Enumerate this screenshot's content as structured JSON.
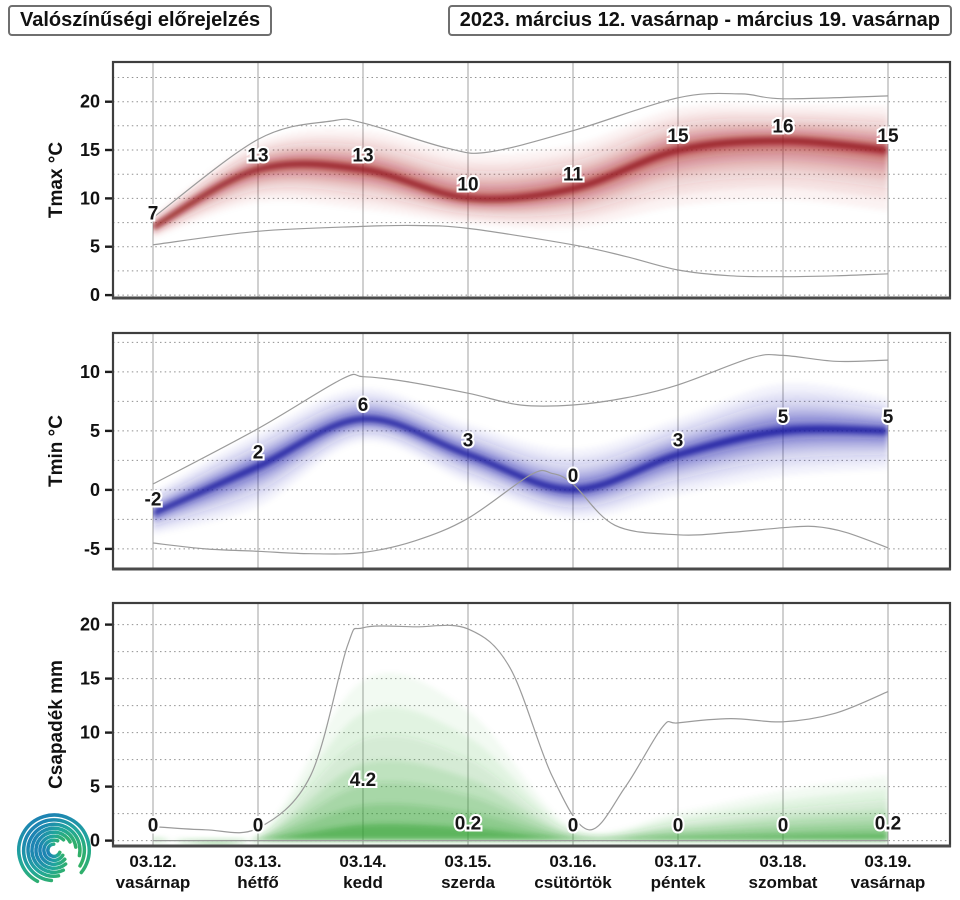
{
  "header": {
    "title": "Valószínűségi előrejelzés",
    "date_range": "2023. március 12. vasárnap - március 19. vasárnap"
  },
  "xaxis": {
    "days": [
      {
        "date": "03.12.",
        "weekday": "vasárnap"
      },
      {
        "date": "03.13.",
        "weekday": "hétfő"
      },
      {
        "date": "03.14.",
        "weekday": "kedd"
      },
      {
        "date": "03.15.",
        "weekday": "szerda"
      },
      {
        "date": "03.16.",
        "weekday": "csütörtök"
      },
      {
        "date": "03.17.",
        "weekday": "péntek"
      },
      {
        "date": "03.18.",
        "weekday": "szombat"
      },
      {
        "date": "03.19.",
        "weekday": "vasárnap"
      }
    ]
  },
  "logo": {
    "name": "meteorology-spiral-logo",
    "gradient": [
      "#3ab54a",
      "#21a79b",
      "#1b75bc"
    ]
  },
  "chart_data": [
    {
      "type": "area",
      "id": "tmax",
      "title": "",
      "ylabel": "Tmax °C",
      "categories": [
        "03.12. vasárnap",
        "03.13. hétfő",
        "03.14. kedd",
        "03.15. szerda",
        "03.16. csütörtök",
        "03.17. péntek",
        "03.18. szombat",
        "03.19. vasárnap"
      ],
      "median": [
        7,
        13,
        13,
        10,
        11,
        15,
        16,
        15
      ],
      "point_labels": [
        "7",
        "13",
        "13",
        "10",
        "11",
        "15",
        "16",
        "15"
      ],
      "fan_hi": [
        8.2,
        15.8,
        17.0,
        14.6,
        15.5,
        19.3,
        19.6,
        19.5
      ],
      "fan_lo": [
        5.9,
        9.6,
        8.9,
        7.4,
        7.0,
        9.2,
        9.9,
        8.7
      ],
      "env_max": [
        [
          0,
          8.0
        ],
        [
          1,
          16.1
        ],
        [
          1.7,
          18.0
        ],
        [
          2,
          17.8
        ],
        [
          2.8,
          15.2
        ],
        [
          3.2,
          14.8
        ],
        [
          4,
          17.0
        ],
        [
          5,
          20.4
        ],
        [
          5.6,
          20.8
        ],
        [
          6,
          20.3
        ],
        [
          7,
          20.6
        ]
      ],
      "env_min": [
        [
          0,
          5.2
        ],
        [
          1,
          6.6
        ],
        [
          2,
          7.1
        ],
        [
          2.5,
          7.2
        ],
        [
          3,
          6.9
        ],
        [
          4,
          5.2
        ],
        [
          4.5,
          4.0
        ],
        [
          5,
          2.6
        ],
        [
          5.5,
          2.0
        ],
        [
          6,
          1.9
        ],
        [
          6.5,
          2.0
        ],
        [
          7,
          2.2
        ]
      ],
      "ylim": [
        -0.3,
        24.1
      ],
      "yticks": [
        0,
        5,
        10,
        15,
        20
      ],
      "minor_step": 2.5,
      "grid": true,
      "legend": "none",
      "color": "#aa1e24",
      "core_color": "#8e151a"
    },
    {
      "type": "area",
      "id": "tmin",
      "title": "",
      "ylabel": "Tmin °C",
      "categories": [
        "03.12. vasárnap",
        "03.13. hétfő",
        "03.14. kedd",
        "03.15. szerda",
        "03.16. csütörtök",
        "03.17. péntek",
        "03.18. szombat",
        "03.19. vasárnap"
      ],
      "median": [
        -2,
        2,
        6,
        3,
        0,
        3,
        5,
        5
      ],
      "point_labels": [
        "-2",
        "2",
        "6",
        "3",
        "0",
        "3",
        "5",
        "5"
      ],
      "fan_hi": [
        -0.2,
        4.8,
        8.6,
        5.6,
        3.4,
        6.0,
        9.0,
        7.8
      ],
      "fan_lo": [
        -3.8,
        -1.4,
        4.1,
        0.6,
        -2.4,
        -0.4,
        1.2,
        1.8
      ],
      "env_max": [
        [
          0,
          0.5
        ],
        [
          1,
          5.2
        ],
        [
          1.8,
          9.4
        ],
        [
          2,
          9.6
        ],
        [
          2.4,
          9.2
        ],
        [
          3,
          8.2
        ],
        [
          3.5,
          7.2
        ],
        [
          4,
          7.2
        ],
        [
          4.5,
          7.8
        ],
        [
          5,
          8.9
        ],
        [
          5.7,
          11.2
        ],
        [
          6,
          11.4
        ],
        [
          6.5,
          10.9
        ],
        [
          7,
          11.0
        ]
      ],
      "env_min": [
        [
          0,
          -4.5
        ],
        [
          0.5,
          -5.0
        ],
        [
          1,
          -5.2
        ],
        [
          1.5,
          -5.4
        ],
        [
          2,
          -5.3
        ],
        [
          2.5,
          -4.3
        ],
        [
          3,
          -2.4
        ],
        [
          3.6,
          1.3
        ],
        [
          3.8,
          1.4
        ],
        [
          4,
          0.5
        ],
        [
          4.4,
          -3.0
        ],
        [
          5,
          -3.8
        ],
        [
          5.5,
          -3.6
        ],
        [
          6,
          -3.2
        ],
        [
          6.3,
          -3.1
        ],
        [
          6.6,
          -3.6
        ],
        [
          7,
          -4.9
        ]
      ],
      "ylim": [
        -6.7,
        13.3
      ],
      "yticks": [
        -5,
        0,
        5,
        10
      ],
      "minor_step": 2.5,
      "grid": true,
      "legend": "none",
      "color": "#2323af",
      "core_color": "#18189a"
    },
    {
      "type": "area",
      "id": "csapadek",
      "title": "",
      "ylabel": "Csapadék mm",
      "categories": [
        "03.12. vasárnap",
        "03.13. hétfő",
        "03.14. kedd",
        "03.15. szerda",
        "03.16. csütörtök",
        "03.17. péntek",
        "03.18. szombat",
        "03.19. vasárnap"
      ],
      "median": [
        0,
        0,
        4.2,
        0.2,
        0,
        0,
        0,
        0.2
      ],
      "point_labels": [
        "0",
        "0",
        "4.2",
        "0.2",
        "0",
        "0",
        "0",
        "0.2"
      ],
      "fan_hi": [
        0.3,
        0.5,
        14.8,
        12.0,
        1.2,
        2.6,
        4.6,
        6.0
      ],
      "fan_lo": [
        0,
        0,
        0,
        0,
        0,
        0,
        0,
        0
      ],
      "env_max": [
        [
          0,
          1.3
        ],
        [
          0.5,
          1.0
        ],
        [
          1,
          1.15
        ],
        [
          1.5,
          6.0
        ],
        [
          1.85,
          18.0
        ],
        [
          2,
          19.7
        ],
        [
          2.5,
          19.8
        ],
        [
          3,
          19.6
        ],
        [
          3.4,
          16.0
        ],
        [
          3.8,
          6.0
        ],
        [
          4.15,
          1.0
        ],
        [
          4.5,
          5.0
        ],
        [
          4.85,
          10.5
        ],
        [
          5,
          10.9
        ],
        [
          5.5,
          11.3
        ],
        [
          6,
          11.0
        ],
        [
          6.5,
          11.8
        ],
        [
          7,
          13.8
        ]
      ],
      "env_min": [
        [
          0,
          0
        ],
        [
          1,
          0
        ],
        [
          2,
          0
        ],
        [
          3,
          0
        ],
        [
          4,
          0
        ],
        [
          5,
          0
        ],
        [
          6,
          0
        ],
        [
          7,
          0
        ]
      ],
      "ylim": [
        -0.5,
        22.0
      ],
      "yticks": [
        0,
        5,
        10,
        15,
        20
      ],
      "minor_step": 2.5,
      "grid": true,
      "legend": "none",
      "zero_based": true,
      "color": "#2da02d",
      "core_color": "#1d8a1d"
    }
  ]
}
